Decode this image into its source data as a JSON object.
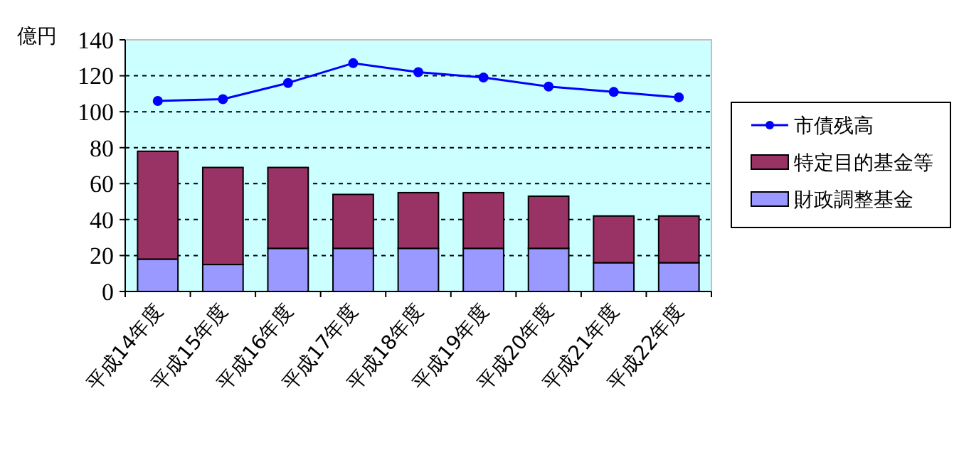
{
  "chart_data": {
    "type": "bar",
    "stacked": true,
    "ylabel": "億円",
    "categories": [
      "平成14年度",
      "平成15年度",
      "平成16年度",
      "平成17年度",
      "平成18年度",
      "平成19年度",
      "平成20年度",
      "平成21年度",
      "平成22年度"
    ],
    "series": [
      {
        "name": "財政調整基金",
        "color": "#9999ff",
        "values": [
          18,
          15,
          24,
          24,
          24,
          24,
          24,
          16,
          16
        ]
      },
      {
        "name": "特定目的基金等",
        "color": "#993366",
        "values": [
          60,
          54,
          45,
          30,
          31,
          31,
          29,
          26,
          26
        ]
      },
      {
        "name": "市債残高",
        "type": "line",
        "color": "#0000ff",
        "marker": "circle",
        "values": [
          106,
          107,
          116,
          127,
          122,
          119,
          114,
          111,
          108
        ]
      }
    ],
    "ylim": [
      0,
      140
    ],
    "yticks": [
      0,
      20,
      40,
      60,
      80,
      100,
      120,
      140
    ],
    "grid": "y",
    "legend": "right"
  }
}
